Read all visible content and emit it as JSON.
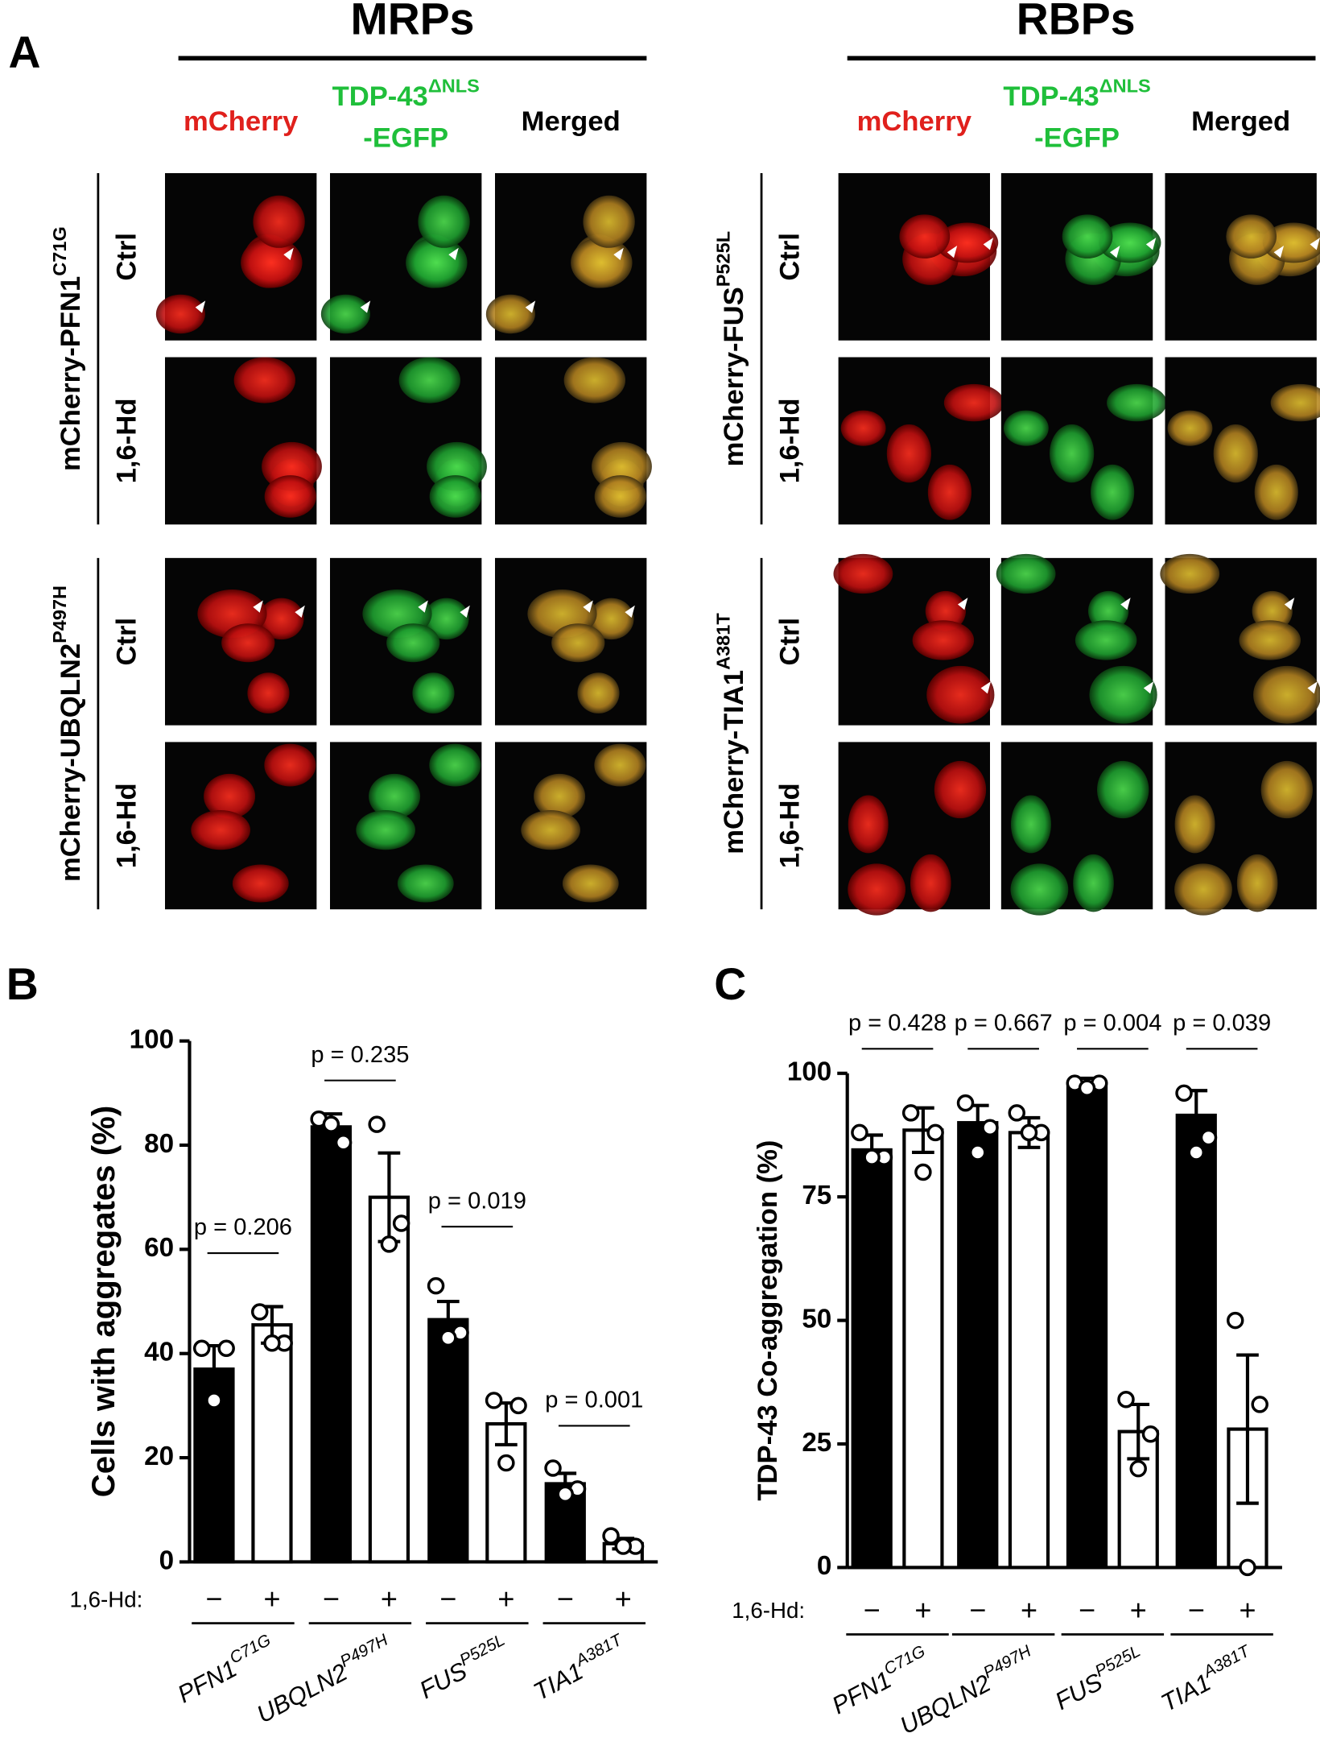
{
  "panel_a": {
    "label": "A",
    "sections": [
      {
        "title": "MRPs",
        "constructs": [
          {
            "name": "mCherry-PFN1",
            "superscript": "C71G"
          },
          {
            "name": "mCherry-UBQLN2",
            "superscript": "P497H"
          }
        ]
      },
      {
        "title": "RBPs",
        "constructs": [
          {
            "name": "mCherry-FUS",
            "superscript": "P525L"
          },
          {
            "name": "mCherry-TIA1",
            "superscript": "A381T"
          }
        ]
      }
    ],
    "columns": [
      {
        "line1": "mCherry",
        "color": "#e0201c"
      },
      {
        "line1": "TDP-43",
        "superscript": "ΔNLS",
        "line2": "-EGFP",
        "color": "#1fbf3a"
      },
      {
        "line1": "Merged",
        "color": "#000000"
      }
    ],
    "conditions": [
      "Ctrl",
      "1,6-Hd"
    ]
  },
  "chart_data": [
    {
      "type": "bar",
      "panel_label": "B",
      "y_label": "Cells with aggregates (%)",
      "treatment_label": "1,6-Hd:",
      "categories": [
        "PFN1",
        "UBQLN2",
        "FUS",
        "TIA1"
      ],
      "category_superscripts": [
        "C71G",
        "P497H",
        "P525L",
        "A381T"
      ],
      "series": [
        {
          "name": "−",
          "color": "#000000",
          "values": [
            37,
            83.5,
            46.5,
            15
          ],
          "errors": [
            4.5,
            2.5,
            3.5,
            2
          ],
          "points": [
            [
              41,
              41,
              31
            ],
            [
              85,
              80.5,
              84
            ],
            [
              53,
              44,
              43
            ],
            [
              18,
              14,
              13
            ]
          ]
        },
        {
          "name": "+",
          "color": "#ffffff",
          "values": [
            45.5,
            70,
            26.5,
            3.5
          ],
          "errors": [
            3.5,
            8.5,
            4,
            1
          ],
          "points": [
            [
              48,
              42,
              42
            ],
            [
              84,
              65,
              61
            ],
            [
              31,
              30,
              19
            ],
            [
              5,
              3,
              3
            ]
          ]
        }
      ],
      "p_values": [
        "p = 0.206",
        "p = 0.235",
        "p = 0.019",
        "p = 0.001"
      ],
      "ylim": [
        0,
        100
      ],
      "yticks": [
        0,
        20,
        40,
        60,
        80,
        100
      ]
    },
    {
      "type": "bar",
      "panel_label": "C",
      "y_label": "TDP-43 Co-aggregation (%)",
      "treatment_label": "1,6-Hd:",
      "categories": [
        "PFN1",
        "UBQLN2",
        "FUS",
        "TIA1"
      ],
      "category_superscripts": [
        "C71G",
        "P497H",
        "P525L",
        "A381T"
      ],
      "series": [
        {
          "name": "−",
          "color": "#000000",
          "values": [
            84.5,
            90,
            97.5,
            91.5
          ],
          "errors": [
            3,
            3.5,
            1.5,
            5
          ],
          "points": [
            [
              88,
              83,
              83
            ],
            [
              94,
              89,
              84
            ],
            [
              98,
              98,
              97
            ],
            [
              96,
              87,
              84
            ]
          ]
        },
        {
          "name": "+",
          "color": "#ffffff",
          "values": [
            88.5,
            88,
            27.5,
            28
          ],
          "errors": [
            4.5,
            3,
            5.5,
            15
          ],
          "points": [
            [
              92,
              88,
              80
            ],
            [
              92,
              88,
              88
            ],
            [
              34,
              27,
              20
            ],
            [
              50,
              33,
              0
            ]
          ]
        }
      ],
      "p_values": [
        "p = 0.428",
        "p = 0.667",
        "p = 0.004",
        "p = 0.039"
      ],
      "ylim": [
        0,
        100
      ],
      "yticks": [
        0,
        25,
        50,
        75,
        100
      ]
    }
  ]
}
